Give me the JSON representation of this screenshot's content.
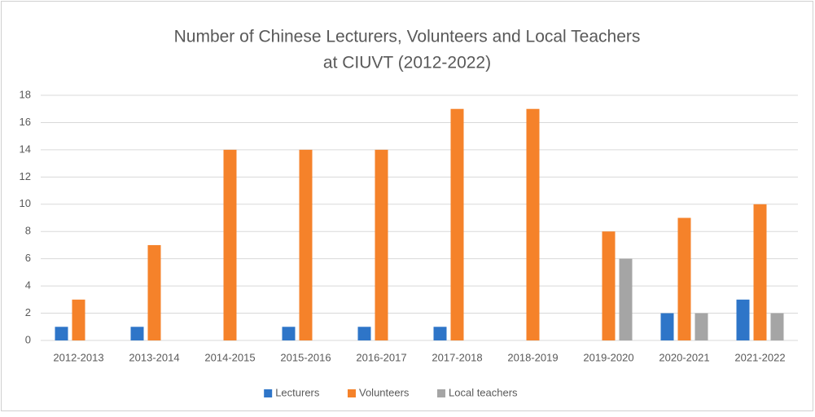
{
  "chart_data": {
    "type": "bar",
    "title": [
      "Number of Chinese Lecturers, Volunteers and Local Teachers",
      "at CIUVT (2012-2022)"
    ],
    "categories": [
      "2012-2013",
      "2013-2014",
      "2014-2015",
      "2015-2016",
      "2016-2017",
      "2017-2018",
      "2018-2019",
      "2019-2020",
      "2020-2021",
      "2021-2022"
    ],
    "series": [
      {
        "name": "Lecturers",
        "color": "#2e75c8",
        "values": [
          1,
          1,
          0,
          1,
          1,
          1,
          0,
          0,
          2,
          3
        ]
      },
      {
        "name": "Volunteers",
        "color": "#f5822a",
        "values": [
          3,
          7,
          14,
          14,
          14,
          17,
          17,
          8,
          9,
          10
        ]
      },
      {
        "name": "Local teachers",
        "color": "#a5a5a5",
        "values": [
          0,
          0,
          0,
          0,
          0,
          0,
          0,
          6,
          2,
          2
        ]
      }
    ],
    "ylim": [
      0,
      18
    ],
    "yticks": [
      0,
      2,
      4,
      6,
      8,
      10,
      12,
      14,
      16,
      18
    ],
    "grid": true,
    "legend": "bottom"
  }
}
